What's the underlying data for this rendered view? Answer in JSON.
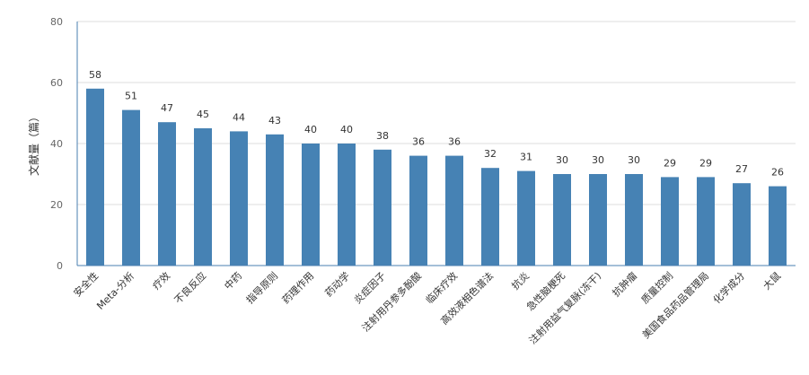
{
  "chart_data": {
    "type": "bar",
    "title": "",
    "xlabel": "",
    "ylabel": "文献量（篇）",
    "ylim": [
      0,
      80
    ],
    "yticks": [
      0,
      20,
      40,
      60,
      80
    ],
    "grid": true,
    "bar_color": "#4682b4",
    "categories": [
      "安全性",
      "Meta-分析",
      "疗效",
      "不良反应",
      "中药",
      "指导原则",
      "药理作用",
      "药动学",
      "炎症因子",
      "注射用丹参多酚酸",
      "临床疗效",
      "高效液相色谱法",
      "抗炎",
      "急性脑梗死",
      "注射用益气复脉(冻干)",
      "抗肿瘤",
      "质量控制",
      "美国食品药品管理局",
      "化学成分",
      "大鼠"
    ],
    "values": [
      58,
      51,
      47,
      45,
      44,
      43,
      40,
      40,
      38,
      36,
      36,
      32,
      31,
      30,
      30,
      30,
      29,
      29,
      27,
      26
    ]
  }
}
